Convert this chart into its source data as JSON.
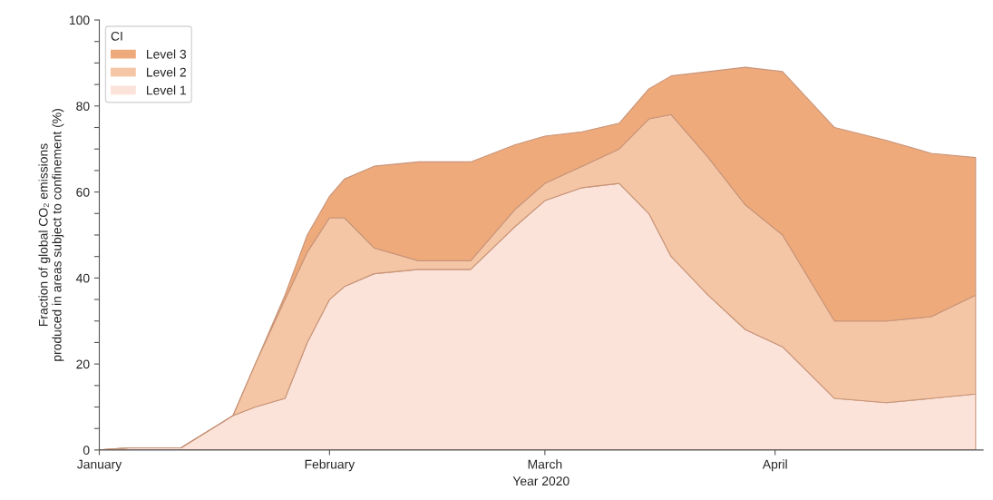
{
  "chart_data": {
    "type": "area",
    "stacked": true,
    "xlabel": "Year 2020",
    "ylabel": "Fraction of global CO₂ emissions\nproduced in areas subject to confinement (%)",
    "legend_title": "CI",
    "legend": "top left",
    "grid": false,
    "x": [
      "2020-01-01",
      "2020-01-05",
      "2020-01-12",
      "2020-01-19",
      "2020-01-22",
      "2020-01-26",
      "2020-01-29",
      "2020-02-01",
      "2020-02-03",
      "2020-02-07",
      "2020-02-13",
      "2020-02-20",
      "2020-02-26",
      "2020-03-01",
      "2020-03-06",
      "2020-03-11",
      "2020-03-15",
      "2020-03-18",
      "2020-03-23",
      "2020-03-28",
      "2020-04-02",
      "2020-04-09",
      "2020-04-16",
      "2020-04-22",
      "2020-04-28"
    ],
    "xlim": [
      "2020-01-01",
      "2020-04-29"
    ],
    "xticks": [
      {
        "value": "2020-01-01",
        "label": "January"
      },
      {
        "value": "2020-02-01",
        "label": "February"
      },
      {
        "value": "2020-03-01",
        "label": "March"
      },
      {
        "value": "2020-04-01",
        "label": "April"
      }
    ],
    "ylim": [
      0,
      100
    ],
    "yticks": [
      0,
      {
        "value": 5,
        "label": null
      },
      {
        "value": 10,
        "label": null
      },
      {
        "value": 15,
        "label": null
      },
      20,
      {
        "value": 25,
        "label": null
      },
      {
        "value": 30,
        "label": null
      },
      {
        "value": 35,
        "label": null
      },
      40,
      {
        "value": 45,
        "label": null
      },
      {
        "value": 50,
        "label": null
      },
      {
        "value": 55,
        "label": null
      },
      60,
      {
        "value": 65,
        "label": null
      },
      {
        "value": 70,
        "label": null
      },
      {
        "value": 75,
        "label": null
      },
      80,
      {
        "value": 85,
        "label": null
      },
      {
        "value": 90,
        "label": null
      },
      {
        "value": 95,
        "label": null
      },
      100
    ],
    "series": [
      {
        "name": "Level 1",
        "color": "#fbe3d9",
        "values": [
          0,
          0.5,
          0.5,
          8,
          10,
          12,
          25,
          35,
          38,
          41,
          42,
          42,
          52,
          58,
          61,
          62,
          55,
          45,
          36,
          28,
          24,
          12,
          11,
          12,
          13
        ]
      },
      {
        "name": "Level 2",
        "color": "#f5c6a5",
        "values": [
          0,
          0,
          0,
          0,
          10,
          23,
          21,
          19,
          16,
          6,
          2,
          2,
          4,
          4,
          5,
          8,
          22,
          33,
          32,
          29,
          26,
          18,
          19,
          19,
          23
        ]
      },
      {
        "name": "Level 3",
        "color": "#eeaa7b",
        "values": [
          0,
          0,
          0,
          0,
          0,
          1,
          4,
          5,
          9,
          19,
          23,
          23,
          15,
          11,
          8,
          6,
          7,
          9,
          20,
          32,
          38,
          45,
          42,
          38,
          32
        ]
      }
    ]
  }
}
